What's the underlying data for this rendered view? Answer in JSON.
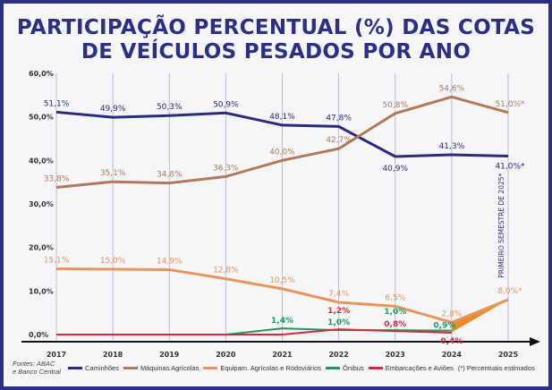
{
  "title_line1": "PARTICIPAÇÃO PERCENTUAL (%)  DAS COTAS",
  "title_line2": "DE VEÍCULOS PESADOS POR ANO",
  "source_line1": "Fontes: ABAC",
  "source_line2": "e Banco Central",
  "estimate_note": "(*) Percentuais estimados",
  "vertical_annotation": "PRIMEIRO SEMESTRE DE 2025*",
  "chart_data": {
    "type": "line",
    "x": [
      "2017",
      "2018",
      "2019",
      "2020",
      "2021",
      "2022",
      "2023",
      "2024",
      "2025"
    ],
    "ylim": [
      0,
      60
    ],
    "yticks": [
      "0,0%",
      "10,0%",
      "20,0%",
      "30,0%",
      "40,0%",
      "50,0%",
      "60,0%"
    ],
    "grid": "vertical",
    "legend": "bottom",
    "series": [
      {
        "name": "Caminhões",
        "color": "#2b2a7f",
        "values": [
          51.1,
          49.9,
          50.3,
          50.9,
          48.1,
          47.8,
          40.9,
          41.3,
          41.0
        ],
        "labels": [
          "51,1%",
          "49,9%",
          "50,3%",
          "50,9%",
          "48,1%",
          "47,8%",
          "40,9%",
          "41,3%",
          "41,0%*"
        ]
      },
      {
        "name": "Máquinas Agrícolas",
        "color": "#b07a58",
        "values": [
          33.8,
          35.1,
          34.8,
          36.3,
          40.0,
          42.7,
          50.8,
          54.6,
          51.0
        ],
        "labels": [
          "33,8%",
          "35,1%",
          "34,8%",
          "36,3%",
          "40,0%",
          "42,7%",
          "50,8%",
          "54,6%",
          "51,0%*"
        ]
      },
      {
        "name": "Equipam. Agrícolas e Rodoviários",
        "color": "#e8955c",
        "values": [
          15.1,
          15.0,
          14.9,
          12.8,
          10.5,
          7.4,
          6.5,
          2.8,
          8.0
        ],
        "labels": [
          "15,1%",
          "15,0%",
          "14,9%",
          "12,8%",
          "10,5%",
          "7,4%",
          "6,5%",
          "2,8%",
          "8,0%*"
        ]
      },
      {
        "name": "Ônibus",
        "color": "#1e9a5c",
        "values": [
          null,
          null,
          null,
          0,
          1.4,
          1.0,
          1.0,
          0.9,
          null
        ],
        "labels": [
          "",
          "",
          "",
          "",
          "1,4%",
          "1,0%",
          "1,0%",
          "0,9%",
          ""
        ]
      },
      {
        "name": "Embarcações e Aviões",
        "color": "#d22a3c",
        "values": [
          0,
          0,
          0,
          0,
          0,
          1.2,
          0.8,
          0.4,
          null
        ],
        "labels": [
          "",
          "",
          "",
          "",
          "",
          "1,2%",
          "0,8%",
          "0,4%",
          ""
        ]
      }
    ]
  }
}
